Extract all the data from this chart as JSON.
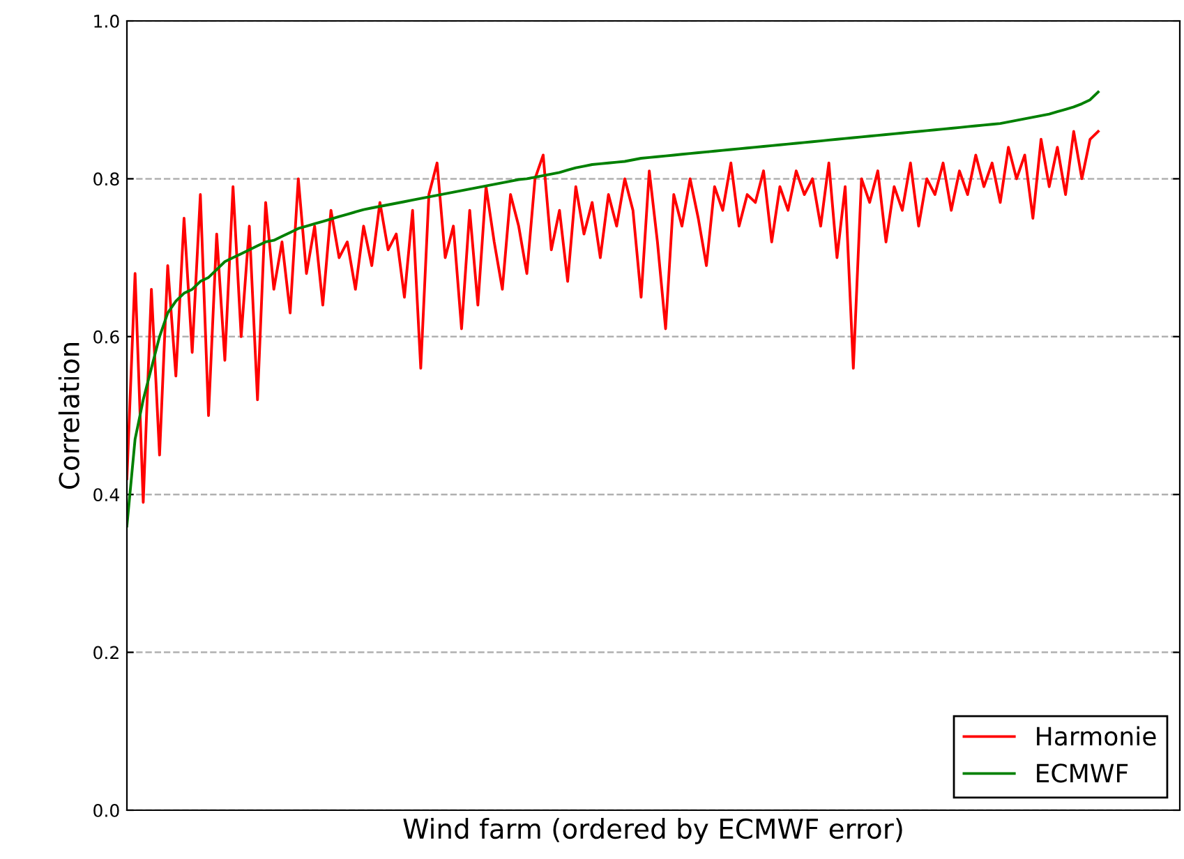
{
  "chart_data": {
    "type": "line",
    "xlabel": "Wind farm (ordered by ECMWF error)",
    "ylabel": "Correlation",
    "categories": [
      null,
      null,
      null,
      null,
      null,
      null,
      null,
      null,
      null,
      null,
      null,
      null,
      null,
      null,
      null,
      null,
      null,
      null,
      null,
      null,
      null,
      null,
      null,
      null,
      null,
      null,
      null,
      null,
      null,
      null,
      null,
      null,
      null,
      null,
      null,
      null,
      null,
      null,
      null,
      null,
      null,
      null,
      null,
      null,
      null,
      null,
      null,
      null,
      null,
      null,
      null,
      null,
      null,
      null,
      null,
      null,
      null,
      null,
      null,
      null,
      null,
      null,
      null,
      null,
      null,
      null,
      null,
      null,
      null,
      null,
      null,
      null,
      null,
      null,
      null,
      null,
      null,
      null,
      null,
      null,
      null,
      null,
      null,
      null,
      null,
      null,
      null,
      null,
      null,
      null,
      null,
      null,
      null,
      null,
      null,
      null,
      null,
      null,
      null,
      null,
      null,
      null,
      null,
      null,
      null,
      null,
      null,
      null,
      null,
      null,
      null,
      null,
      null,
      null,
      null,
      null,
      null,
      null,
      null,
      null,
      null,
      null,
      null,
      null,
      null,
      null,
      null,
      null,
      null,
      null
    ],
    "series": [
      {
        "name": "Harmonie",
        "color": "#ff0000",
        "values": [
          0.42,
          0.68,
          0.39,
          0.66,
          0.45,
          0.69,
          0.55,
          0.75,
          0.58,
          0.78,
          0.5,
          0.73,
          0.57,
          0.79,
          0.6,
          0.74,
          0.52,
          0.77,
          0.66,
          0.72,
          0.63,
          0.8,
          0.68,
          0.74,
          0.64,
          0.76,
          0.7,
          0.72,
          0.66,
          0.74,
          0.69,
          0.77,
          0.71,
          0.73,
          0.65,
          0.76,
          0.56,
          0.78,
          0.82,
          0.7,
          0.74,
          0.61,
          0.76,
          0.64,
          0.79,
          0.72,
          0.66,
          0.78,
          0.74,
          0.68,
          0.8,
          0.83,
          0.71,
          0.76,
          0.67,
          0.79,
          0.73,
          0.77,
          0.7,
          0.78,
          0.74,
          0.8,
          0.76,
          0.65,
          0.81,
          0.72,
          0.61,
          0.78,
          0.74,
          0.8,
          0.75,
          0.69,
          0.79,
          0.76,
          0.82,
          0.74,
          0.78,
          0.77,
          0.81,
          0.72,
          0.79,
          0.76,
          0.81,
          0.78,
          0.8,
          0.74,
          0.82,
          0.7,
          0.79,
          0.56,
          0.8,
          0.77,
          0.81,
          0.72,
          0.79,
          0.76,
          0.82,
          0.74,
          0.8,
          0.78,
          0.82,
          0.76,
          0.81,
          0.78,
          0.83,
          0.79,
          0.82,
          0.77,
          0.84,
          0.8,
          0.83,
          0.75,
          0.85,
          0.79,
          0.84,
          0.78,
          0.86,
          0.8,
          0.85,
          0.86,
          null,
          null,
          null,
          null,
          null,
          null,
          null,
          null,
          null,
          null
        ]
      },
      {
        "name": "ECMWF",
        "color": "#008000",
        "values": [
          0.36,
          0.47,
          0.52,
          0.56,
          0.6,
          0.63,
          0.645,
          0.655,
          0.66,
          0.67,
          0.675,
          0.685,
          0.695,
          0.7,
          0.705,
          0.71,
          0.715,
          0.72,
          0.722,
          0.727,
          0.732,
          0.737,
          0.74,
          0.743,
          0.746,
          0.749,
          0.752,
          0.755,
          0.758,
          0.761,
          0.763,
          0.765,
          0.767,
          0.769,
          0.771,
          0.773,
          0.775,
          0.777,
          0.779,
          0.781,
          0.783,
          0.785,
          0.787,
          0.789,
          0.791,
          0.793,
          0.795,
          0.797,
          0.799,
          0.8,
          0.802,
          0.804,
          0.806,
          0.808,
          0.811,
          0.814,
          0.816,
          0.818,
          0.819,
          0.82,
          0.821,
          0.822,
          0.824,
          0.826,
          0.827,
          0.828,
          0.829,
          0.83,
          0.831,
          0.832,
          0.833,
          0.834,
          0.835,
          0.836,
          0.837,
          0.838,
          0.839,
          0.84,
          0.841,
          0.842,
          0.843,
          0.844,
          0.845,
          0.846,
          0.847,
          0.848,
          0.849,
          0.85,
          0.851,
          0.852,
          0.853,
          0.854,
          0.855,
          0.856,
          0.857,
          0.858,
          0.859,
          0.86,
          0.861,
          0.862,
          0.863,
          0.864,
          0.865,
          0.866,
          0.867,
          0.868,
          0.869,
          0.87,
          0.872,
          0.874,
          0.876,
          0.878,
          0.88,
          0.882,
          0.885,
          0.888,
          0.891,
          0.895,
          0.9,
          0.91,
          null,
          null,
          null,
          null,
          null,
          null,
          null,
          null,
          null,
          null
        ]
      }
    ],
    "ylim": [
      0.0,
      1.0
    ],
    "yticks": [
      {
        "value": 0.0,
        "label": "0.0"
      },
      {
        "value": 0.2,
        "label": "0.2"
      },
      {
        "value": 0.4,
        "label": "0.4"
      },
      {
        "value": 0.6,
        "label": "0.6"
      },
      {
        "value": 0.8,
        "label": "0.8"
      },
      {
        "value": 1.0,
        "label": "1.0"
      }
    ],
    "grid": "y",
    "legend": "bottom right",
    "tick_labels": "y",
    "line_style": "solid",
    "marker": "none"
  }
}
